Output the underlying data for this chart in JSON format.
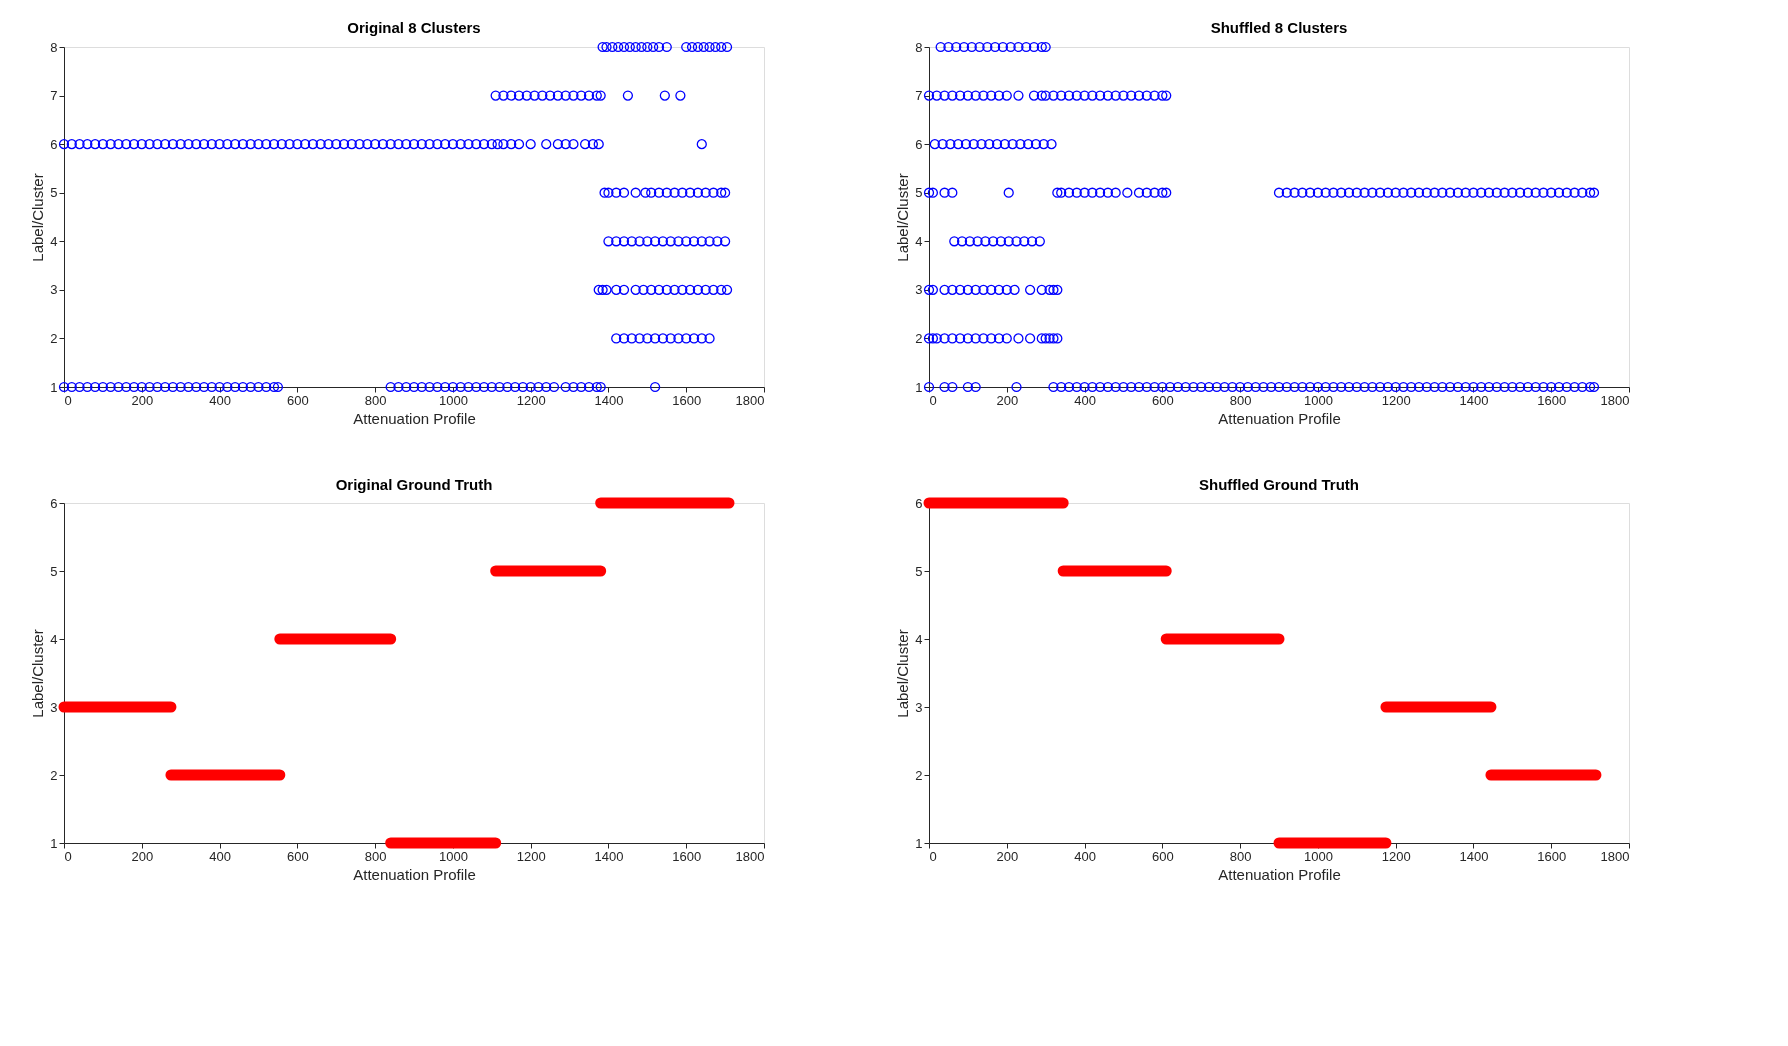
{
  "chart_data": [
    {
      "type": "scatter",
      "title": "Original 8 Clusters",
      "xlabel": "Attenuation Profile",
      "ylabel": "Label/Cluster",
      "xlim": [
        0,
        1800
      ],
      "xticks": [
        0,
        200,
        400,
        600,
        800,
        1000,
        1200,
        1400,
        1600,
        1800
      ],
      "ylim": [
        1,
        8
      ],
      "yticks": [
        1,
        2,
        3,
        4,
        5,
        6,
        7,
        8
      ],
      "grid": false,
      "marker": "circle",
      "series": [
        {
          "color": "#0000ff",
          "x": [
            1385,
            1395,
            1410,
            1425,
            1440,
            1455,
            1470,
            1485,
            1500,
            1515,
            1530,
            1550,
            1600,
            1615,
            1630,
            1645,
            1660,
            1675,
            1690,
            1705
          ],
          "values": [
            8,
            8,
            8,
            8,
            8,
            8,
            8,
            8,
            8,
            8,
            8,
            8,
            8,
            8,
            8,
            8,
            8,
            8,
            8,
            8
          ]
        },
        {
          "color": "#0000ff",
          "x": [
            1110,
            1130,
            1150,
            1170,
            1190,
            1210,
            1230,
            1250,
            1270,
            1290,
            1310,
            1330,
            1350,
            1370,
            1380,
            1450,
            1545,
            1585
          ],
          "values": [
            7,
            7,
            7,
            7,
            7,
            7,
            7,
            7,
            7,
            7,
            7,
            7,
            7,
            7,
            7,
            7,
            7,
            7
          ]
        },
        {
          "color": "#0000ff",
          "x": [
            0,
            20,
            40,
            60,
            80,
            100,
            120,
            140,
            160,
            180,
            200,
            220,
            240,
            260,
            280,
            300,
            320,
            340,
            360,
            380,
            400,
            420,
            440,
            460,
            480,
            500,
            520,
            540,
            560,
            580,
            600,
            620,
            640,
            660,
            680,
            700,
            720,
            740,
            760,
            780,
            800,
            820,
            840,
            860,
            880,
            900,
            920,
            940,
            960,
            980,
            1000,
            1020,
            1040,
            1060,
            1080,
            1100,
            1115,
            1130,
            1150,
            1170,
            1200,
            1240,
            1270,
            1290,
            1310,
            1340,
            1360,
            1375,
            1640
          ],
          "values": [
            6,
            6,
            6,
            6,
            6,
            6,
            6,
            6,
            6,
            6,
            6,
            6,
            6,
            6,
            6,
            6,
            6,
            6,
            6,
            6,
            6,
            6,
            6,
            6,
            6,
            6,
            6,
            6,
            6,
            6,
            6,
            6,
            6,
            6,
            6,
            6,
            6,
            6,
            6,
            6,
            6,
            6,
            6,
            6,
            6,
            6,
            6,
            6,
            6,
            6,
            6,
            6,
            6,
            6,
            6,
            6,
            6,
            6,
            6,
            6,
            6,
            6,
            6,
            6,
            6,
            6,
            6,
            6,
            6
          ]
        },
        {
          "color": "#0000ff",
          "x": [
            1390,
            1400,
            1420,
            1440,
            1470,
            1495,
            1510,
            1530,
            1550,
            1570,
            1590,
            1610,
            1630,
            1650,
            1670,
            1690,
            1700
          ],
          "values": [
            5,
            5,
            5,
            5,
            5,
            5,
            5,
            5,
            5,
            5,
            5,
            5,
            5,
            5,
            5,
            5,
            5
          ]
        },
        {
          "color": "#0000ff",
          "x": [
            1400,
            1420,
            1440,
            1460,
            1480,
            1500,
            1520,
            1540,
            1560,
            1580,
            1600,
            1620,
            1640,
            1660,
            1680,
            1700
          ],
          "values": [
            4,
            4,
            4,
            4,
            4,
            4,
            4,
            4,
            4,
            4,
            4,
            4,
            4,
            4,
            4,
            4
          ]
        },
        {
          "color": "#0000ff",
          "x": [
            1375,
            1385,
            1395,
            1420,
            1440,
            1470,
            1490,
            1510,
            1530,
            1550,
            1570,
            1590,
            1610,
            1630,
            1650,
            1670,
            1690,
            1705
          ],
          "values": [
            3,
            3,
            3,
            3,
            3,
            3,
            3,
            3,
            3,
            3,
            3,
            3,
            3,
            3,
            3,
            3,
            3,
            3
          ]
        },
        {
          "color": "#0000ff",
          "x": [
            1420,
            1440,
            1460,
            1480,
            1500,
            1520,
            1540,
            1560,
            1580,
            1600,
            1620,
            1640,
            1660
          ],
          "values": [
            2,
            2,
            2,
            2,
            2,
            2,
            2,
            2,
            2,
            2,
            2,
            2,
            2
          ]
        },
        {
          "color": "#0000ff",
          "x": [
            0,
            20,
            40,
            60,
            80,
            100,
            120,
            140,
            160,
            180,
            200,
            220,
            240,
            260,
            280,
            300,
            320,
            340,
            360,
            380,
            400,
            420,
            440,
            460,
            480,
            500,
            520,
            540,
            550,
            840,
            860,
            880,
            900,
            920,
            940,
            960,
            980,
            1000,
            1020,
            1040,
            1060,
            1080,
            1100,
            1120,
            1140,
            1160,
            1180,
            1200,
            1220,
            1240,
            1260,
            1290,
            1310,
            1330,
            1350,
            1370,
            1380,
            1520
          ],
          "values": [
            1,
            1,
            1,
            1,
            1,
            1,
            1,
            1,
            1,
            1,
            1,
            1,
            1,
            1,
            1,
            1,
            1,
            1,
            1,
            1,
            1,
            1,
            1,
            1,
            1,
            1,
            1,
            1,
            1,
            1,
            1,
            1,
            1,
            1,
            1,
            1,
            1,
            1,
            1,
            1,
            1,
            1,
            1,
            1,
            1,
            1,
            1,
            1,
            1,
            1,
            1,
            1,
            1,
            1,
            1,
            1,
            1,
            1
          ]
        }
      ]
    },
    {
      "type": "scatter",
      "title": "Shuffled 8 Clusters",
      "xlabel": "Attenuation Profile",
      "ylabel": "Label/Cluster",
      "xlim": [
        0,
        1800
      ],
      "xticks": [
        0,
        200,
        400,
        600,
        800,
        1000,
        1200,
        1400,
        1600,
        1800
      ],
      "ylim": [
        1,
        8
      ],
      "yticks": [
        1,
        2,
        3,
        4,
        5,
        6,
        7,
        8
      ],
      "grid": false,
      "marker": "circle",
      "series": [
        {
          "color": "#0000ff",
          "x": [
            30,
            50,
            70,
            90,
            110,
            130,
            150,
            170,
            190,
            210,
            230,
            250,
            270,
            290,
            300
          ],
          "values": [
            8,
            8,
            8,
            8,
            8,
            8,
            8,
            8,
            8,
            8,
            8,
            8,
            8,
            8,
            8
          ]
        },
        {
          "color": "#0000ff",
          "x": [
            0,
            20,
            40,
            60,
            80,
            100,
            120,
            140,
            160,
            180,
            200,
            230,
            270,
            290,
            300,
            320,
            340,
            360,
            380,
            400,
            420,
            440,
            460,
            480,
            500,
            520,
            540,
            560,
            580,
            600,
            610
          ],
          "values": [
            7,
            7,
            7,
            7,
            7,
            7,
            7,
            7,
            7,
            7,
            7,
            7,
            7,
            7,
            7,
            7,
            7,
            7,
            7,
            7,
            7,
            7,
            7,
            7,
            7,
            7,
            7,
            7,
            7,
            7,
            7
          ]
        },
        {
          "color": "#0000ff",
          "x": [
            15,
            35,
            55,
            75,
            95,
            115,
            135,
            155,
            175,
            195,
            215,
            235,
            255,
            275,
            295,
            315
          ],
          "values": [
            6,
            6,
            6,
            6,
            6,
            6,
            6,
            6,
            6,
            6,
            6,
            6,
            6,
            6,
            6,
            6
          ]
        },
        {
          "color": "#0000ff",
          "x": [
            0,
            10,
            40,
            60,
            205,
            330,
            340,
            360,
            380,
            400,
            420,
            440,
            460,
            480,
            510,
            540,
            560,
            580,
            600,
            610,
            900,
            920,
            940,
            960,
            980,
            1000,
            1020,
            1040,
            1060,
            1080,
            1100,
            1120,
            1140,
            1160,
            1180,
            1200,
            1220,
            1240,
            1260,
            1280,
            1300,
            1320,
            1340,
            1360,
            1380,
            1400,
            1420,
            1440,
            1460,
            1480,
            1500,
            1520,
            1540,
            1560,
            1580,
            1600,
            1620,
            1640,
            1660,
            1680,
            1700,
            1710
          ],
          "values": [
            5,
            5,
            5,
            5,
            5,
            5,
            5,
            5,
            5,
            5,
            5,
            5,
            5,
            5,
            5,
            5,
            5,
            5,
            5,
            5,
            5,
            5,
            5,
            5,
            5,
            5,
            5,
            5,
            5,
            5,
            5,
            5,
            5,
            5,
            5,
            5,
            5,
            5,
            5,
            5,
            5,
            5,
            5,
            5,
            5,
            5,
            5,
            5,
            5,
            5,
            5,
            5,
            5,
            5,
            5,
            5,
            5,
            5,
            5,
            5,
            5,
            5
          ]
        },
        {
          "color": "#0000ff",
          "x": [
            65,
            85,
            105,
            125,
            145,
            165,
            185,
            205,
            225,
            245,
            265,
            285
          ],
          "values": [
            4,
            4,
            4,
            4,
            4,
            4,
            4,
            4,
            4,
            4,
            4,
            4
          ]
        },
        {
          "color": "#0000ff",
          "x": [
            0,
            10,
            40,
            60,
            80,
            100,
            120,
            140,
            160,
            180,
            200,
            220,
            260,
            290,
            310,
            320,
            330
          ],
          "values": [
            3,
            3,
            3,
            3,
            3,
            3,
            3,
            3,
            3,
            3,
            3,
            3,
            3,
            3,
            3,
            3,
            3
          ]
        },
        {
          "color": "#0000ff",
          "x": [
            0,
            10,
            20,
            40,
            60,
            80,
            100,
            120,
            140,
            160,
            180,
            200,
            230,
            260,
            290,
            300,
            310,
            320,
            330
          ],
          "values": [
            2,
            2,
            2,
            2,
            2,
            2,
            2,
            2,
            2,
            2,
            2,
            2,
            2,
            2,
            2,
            2,
            2,
            2,
            2
          ]
        },
        {
          "color": "#0000ff",
          "x": [
            0,
            40,
            60,
            100,
            120,
            225,
            320,
            340,
            360,
            380,
            400,
            420,
            440,
            460,
            480,
            500,
            520,
            540,
            560,
            580,
            600,
            620,
            640,
            660,
            680,
            700,
            720,
            740,
            760,
            780,
            800,
            820,
            840,
            860,
            880,
            900,
            920,
            940,
            960,
            980,
            1000,
            1020,
            1040,
            1060,
            1080,
            1100,
            1120,
            1140,
            1160,
            1180,
            1200,
            1220,
            1240,
            1260,
            1280,
            1300,
            1320,
            1340,
            1360,
            1380,
            1400,
            1420,
            1440,
            1460,
            1480,
            1500,
            1520,
            1540,
            1560,
            1580,
            1600,
            1620,
            1640,
            1660,
            1680,
            1700,
            1710
          ],
          "values": [
            1,
            1,
            1,
            1,
            1,
            1,
            1,
            1,
            1,
            1,
            1,
            1,
            1,
            1,
            1,
            1,
            1,
            1,
            1,
            1,
            1,
            1,
            1,
            1,
            1,
            1,
            1,
            1,
            1,
            1,
            1,
            1,
            1,
            1,
            1,
            1,
            1,
            1,
            1,
            1,
            1,
            1,
            1,
            1,
            1,
            1,
            1,
            1,
            1,
            1,
            1,
            1,
            1,
            1,
            1,
            1,
            1,
            1,
            1,
            1,
            1,
            1,
            1,
            1,
            1,
            1,
            1,
            1,
            1,
            1,
            1,
            1,
            1,
            1,
            1,
            1,
            1
          ]
        }
      ]
    },
    {
      "type": "line",
      "title": "Original Ground Truth",
      "xlabel": "Attenuation Profile",
      "ylabel": "Label/Cluster",
      "xlim": [
        0,
        1800
      ],
      "xticks": [
        0,
        200,
        400,
        600,
        800,
        1000,
        1200,
        1400,
        1600,
        1800
      ],
      "ylim": [
        1,
        6
      ],
      "yticks": [
        1,
        2,
        3,
        4,
        5,
        6
      ],
      "grid": false,
      "line_style": "solid",
      "series": [
        {
          "color": "#ff0000",
          "x": [
            0,
            275
          ],
          "values": [
            3,
            3
          ]
        },
        {
          "color": "#ff0000",
          "x": [
            275,
            555
          ],
          "values": [
            2,
            2
          ]
        },
        {
          "color": "#ff0000",
          "x": [
            555,
            840
          ],
          "values": [
            4,
            4
          ]
        },
        {
          "color": "#ff0000",
          "x": [
            840,
            1110
          ],
          "values": [
            1,
            1
          ]
        },
        {
          "color": "#ff0000",
          "x": [
            1110,
            1380
          ],
          "values": [
            5,
            5
          ]
        },
        {
          "color": "#ff0000",
          "x": [
            1380,
            1710
          ],
          "values": [
            6,
            6
          ]
        }
      ]
    },
    {
      "type": "line",
      "title": "Shuffled Ground Truth",
      "xlabel": "Attenuation Profile",
      "ylabel": "Label/Cluster",
      "xlim": [
        0,
        1800
      ],
      "xticks": [
        0,
        200,
        400,
        600,
        800,
        1000,
        1200,
        1400,
        1600,
        1800
      ],
      "ylim": [
        1,
        6
      ],
      "yticks": [
        1,
        2,
        3,
        4,
        5,
        6
      ],
      "grid": false,
      "line_style": "solid",
      "series": [
        {
          "color": "#ff0000",
          "x": [
            0,
            345
          ],
          "values": [
            6,
            6
          ]
        },
        {
          "color": "#ff0000",
          "x": [
            345,
            610
          ],
          "values": [
            5,
            5
          ]
        },
        {
          "color": "#ff0000",
          "x": [
            610,
            900
          ],
          "values": [
            4,
            4
          ]
        },
        {
          "color": "#ff0000",
          "x": [
            900,
            1175
          ],
          "values": [
            1,
            1
          ]
        },
        {
          "color": "#ff0000",
          "x": [
            1175,
            1445
          ],
          "values": [
            3,
            3
          ]
        },
        {
          "color": "#ff0000",
          "x": [
            1445,
            1715
          ],
          "values": [
            2,
            2
          ]
        }
      ]
    }
  ]
}
